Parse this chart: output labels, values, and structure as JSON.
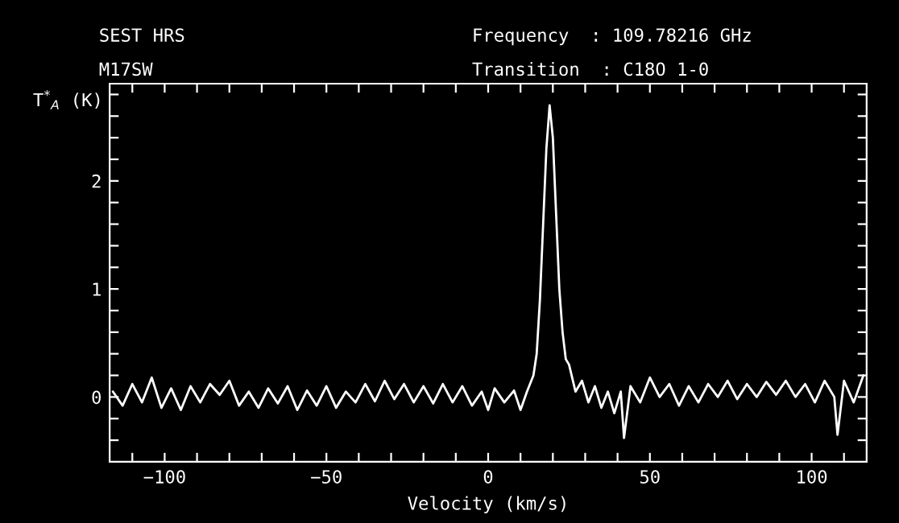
{
  "chart_data": {
    "type": "line",
    "annotations": [
      "SEST HRS",
      "M17SW",
      "Frequency  : 109.78216 GHz",
      "Transition  : C18O 1-0"
    ],
    "xlabel": "Velocity (km/s)",
    "ylabel": "T$^{*}$$_{A}$ (K)",
    "x": [
      -116,
      -113,
      -110,
      -107,
      -104,
      -101,
      -98,
      -95,
      -92,
      -89,
      -86,
      -83,
      -80,
      -77,
      -74,
      -71,
      -68,
      -65,
      -62,
      -59,
      -56,
      -53,
      -50,
      -47,
      -44,
      -41,
      -38,
      -35,
      -32,
      -29,
      -26,
      -23,
      -20,
      -17,
      -14,
      -11,
      -8,
      -5,
      -2,
      0,
      2,
      5,
      8,
      10,
      12,
      14,
      15,
      16,
      17,
      18,
      19,
      20,
      21,
      22,
      23,
      24,
      25,
      27,
      29,
      31,
      33,
      35,
      37,
      39,
      41,
      42,
      44,
      47,
      50,
      53,
      56,
      59,
      62,
      65,
      68,
      71,
      74,
      77,
      80,
      83,
      86,
      89,
      92,
      95,
      98,
      101,
      104,
      107,
      108,
      110,
      113,
      116
    ],
    "series": [
      {
        "color": "#ffffff",
        "values": [
          0.05,
          -0.08,
          0.12,
          -0.05,
          0.18,
          -0.1,
          0.08,
          -0.12,
          0.1,
          -0.05,
          0.12,
          0.02,
          0.15,
          -0.08,
          0.05,
          -0.1,
          0.08,
          -0.06,
          0.1,
          -0.12,
          0.06,
          -0.08,
          0.1,
          -0.1,
          0.05,
          -0.05,
          0.12,
          -0.04,
          0.15,
          -0.02,
          0.12,
          -0.05,
          0.1,
          -0.06,
          0.12,
          -0.05,
          0.1,
          -0.08,
          0.05,
          -0.12,
          0.08,
          -0.05,
          0.06,
          -0.12,
          0.05,
          0.2,
          0.4,
          0.9,
          1.6,
          2.3,
          2.7,
          2.4,
          1.7,
          1.0,
          0.6,
          0.35,
          0.3,
          0.05,
          0.15,
          -0.05,
          0.1,
          -0.1,
          0.05,
          -0.15,
          0.05,
          -0.38,
          0.1,
          -0.05,
          0.18,
          0.0,
          0.12,
          -0.08,
          0.1,
          -0.05,
          0.12,
          0.0,
          0.15,
          -0.02,
          0.12,
          0.0,
          0.14,
          0.02,
          0.15,
          0.0,
          0.12,
          -0.05,
          0.15,
          0.0,
          -0.35,
          0.15,
          -0.05,
          0.2
        ]
      }
    ],
    "xlim": [
      -117,
      117
    ],
    "ylim": [
      -0.6,
      2.9
    ],
    "xticks": [
      {
        "value": -110,
        "label": null
      },
      {
        "value": -100,
        "label": "−100"
      },
      {
        "value": -90,
        "label": null
      },
      {
        "value": -80,
        "label": null
      },
      {
        "value": -70,
        "label": null
      },
      {
        "value": -60,
        "label": null
      },
      {
        "value": -50,
        "label": "−50"
      },
      {
        "value": -40,
        "label": null
      },
      {
        "value": -30,
        "label": null
      },
      {
        "value": -20,
        "label": null
      },
      {
        "value": -10,
        "label": null
      },
      0,
      {
        "value": 10,
        "label": null
      },
      {
        "value": 20,
        "label": null
      },
      {
        "value": 30,
        "label": null
      },
      {
        "value": 40,
        "label": null
      },
      50,
      {
        "value": 60,
        "label": null
      },
      {
        "value": 70,
        "label": null
      },
      {
        "value": 80,
        "label": null
      },
      {
        "value": 90,
        "label": null
      },
      100,
      {
        "value": 110,
        "label": null
      }
    ],
    "yticks": [
      {
        "value": -0.4,
        "label": null
      },
      {
        "value": -0.2,
        "label": null
      },
      0,
      {
        "value": 0.2,
        "label": null
      },
      {
        "value": 0.4,
        "label": null
      },
      {
        "value": 0.6,
        "label": null
      },
      {
        "value": 0.8,
        "label": null
      },
      1,
      {
        "value": 1.2,
        "label": null
      },
      {
        "value": 1.4,
        "label": null
      },
      {
        "value": 1.6,
        "label": null
      },
      {
        "value": 1.8,
        "label": null
      },
      2,
      {
        "value": 2.2,
        "label": null
      },
      {
        "value": 2.4,
        "label": null
      },
      {
        "value": 2.6,
        "label": null
      },
      {
        "value": 2.8,
        "label": null
      }
    ],
    "grid": false
  }
}
